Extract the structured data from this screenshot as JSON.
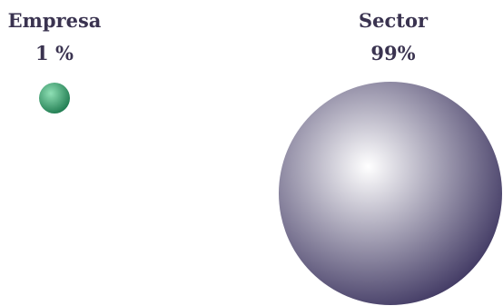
{
  "chart_data": {
    "type": "bubble",
    "title": "",
    "categories": [
      "Empresa",
      "Sector"
    ],
    "value_labels": [
      "1 %",
      "99%"
    ],
    "values": [
      1,
      99
    ],
    "unit": "%",
    "colors": [
      "#1e7a4f",
      "#3d3560"
    ],
    "highlight_colors": [
      "#8fe0b5",
      "#ffffff"
    ]
  }
}
